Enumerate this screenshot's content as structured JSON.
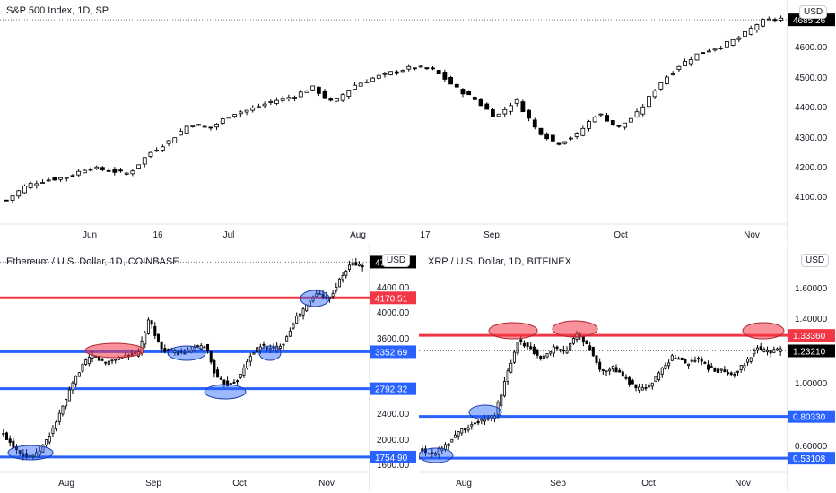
{
  "panels": {
    "spx": {
      "title": "S&P 500 Index, 1D, SP",
      "currency": "USD",
      "last_price": "4685.26",
      "y_ticks": [
        "4600.00",
        "4500.00",
        "4400.00",
        "4300.00",
        "4200.00",
        "4100.00"
      ],
      "x_ticks": [
        "Jun",
        "16",
        "Jul",
        "Aug",
        "17",
        "Sep",
        "Oct",
        "Nov"
      ]
    },
    "eth": {
      "title": "Ethereum / U.S. Dollar, 1D, COINBASE",
      "currency": "USD",
      "last_price": "4712.55",
      "y_ticks": [
        "4400.00",
        "4000.00",
        "3600.00",
        "2400.00",
        "2000.00",
        "1600.00"
      ],
      "level_labels": [
        "4170.51",
        "3352.69",
        "2792.32",
        "1754.90"
      ],
      "x_ticks": [
        "Aug",
        "Sep",
        "Oct",
        "Nov"
      ]
    },
    "xrp": {
      "title": "XRP / U.S. Dollar, 1D, BITFINEX",
      "currency": "USD",
      "last_price": "1.23210",
      "y_ticks": [
        "1.60000",
        "1.40000",
        "1.00000",
        "0.60000"
      ],
      "level_labels": [
        "1.33360",
        "0.80330",
        "0.53108"
      ],
      "x_ticks": [
        "Aug",
        "Sep",
        "Oct",
        "Nov"
      ]
    }
  },
  "chart_data": [
    {
      "type": "candlestick",
      "title": "S&P 500 Index, 1D, SP",
      "ylim": [
        4040,
        4720
      ],
      "x_ticks": [
        "Jun",
        "16",
        "Jul",
        "Aug",
        "17",
        "Sep",
        "Oct",
        "Nov"
      ],
      "close_path": [
        4110,
        4160,
        4175,
        4185,
        4215,
        4205,
        4195,
        4260,
        4300,
        4355,
        4340,
        4385,
        4400,
        4425,
        4440,
        4470,
        4420,
        4475,
        4500,
        4520,
        4535,
        4525,
        4470,
        4430,
        4375,
        4430,
        4335,
        4290,
        4320,
        4390,
        4340,
        4390,
        4480,
        4540,
        4580,
        4600,
        4630,
        4680,
        4690
      ],
      "last_price": 4685.26,
      "colors": {
        "up": "#ffffff",
        "down": "#000000",
        "outline": "#000000"
      }
    },
    {
      "type": "candlestick",
      "title": "Ethereum / U.S. Dollar, 1D, COINBASE",
      "ylim": [
        1550,
        4800
      ],
      "x_ticks": [
        "Aug",
        "Sep",
        "Oct",
        "Nov"
      ],
      "close_path": [
        2100,
        1900,
        1760,
        1800,
        2050,
        2400,
        2800,
        3150,
        3300,
        3180,
        3250,
        3300,
        3320,
        3850,
        3400,
        3350,
        3320,
        3400,
        3450,
        2950,
        2850,
        2950,
        3300,
        3450,
        3380,
        3500,
        3850,
        4050,
        4250,
        4150,
        4450,
        4700,
        4650
      ],
      "horizontal_levels": [
        {
          "value": 4170.51,
          "color": "#f23645"
        },
        {
          "value": 3352.69,
          "color": "#2962ff"
        },
        {
          "value": 2792.32,
          "color": "#2962ff"
        },
        {
          "value": 1754.9,
          "color": "#2962ff"
        }
      ],
      "last_price": 4712.55,
      "colors": {
        "up": "#ffffff",
        "down": "#000000",
        "outline": "#000000"
      }
    },
    {
      "type": "candlestick",
      "title": "XRP / U.S. Dollar, 1D, BITFINEX",
      "ylim": [
        0.45,
        1.85
      ],
      "x_ticks": [
        "Aug",
        "Sep",
        "Oct",
        "Nov"
      ],
      "close_path": [
        0.58,
        0.56,
        0.62,
        0.7,
        0.75,
        0.78,
        0.8,
        1.05,
        1.3,
        1.25,
        1.18,
        1.25,
        1.22,
        1.35,
        1.25,
        1.1,
        1.12,
        1.05,
        0.98,
        1.0,
        1.1,
        1.2,
        1.15,
        1.18,
        1.12,
        1.1,
        1.08,
        1.15,
        1.25,
        1.22,
        1.24
      ],
      "horizontal_levels": [
        {
          "value": 1.3336,
          "color": "#f23645"
        },
        {
          "value": 0.8033,
          "color": "#2962ff"
        },
        {
          "value": 0.53108,
          "color": "#2962ff"
        }
      ],
      "last_price": 1.2321,
      "colors": {
        "up": "#ffffff",
        "down": "#000000",
        "outline": "#000000"
      }
    }
  ]
}
